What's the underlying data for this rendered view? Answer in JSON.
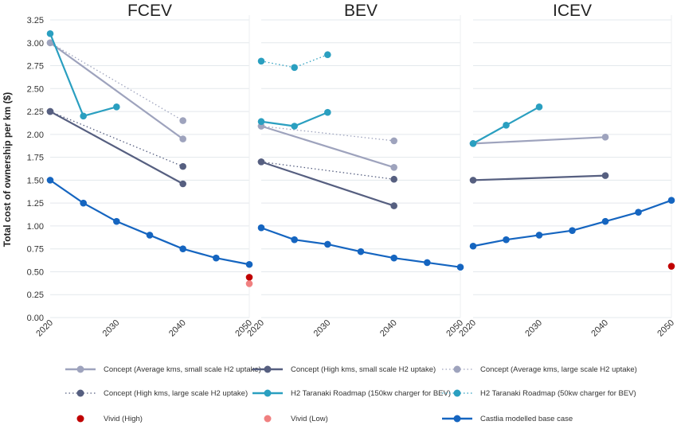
{
  "chart_data": {
    "type": "line",
    "ylabel": "Total cost of ownership per km ($)",
    "ylim": [
      0,
      3.25
    ],
    "yticks": [
      "0.00",
      "0.25",
      "0.50",
      "0.75",
      "1.00",
      "1.25",
      "1.50",
      "1.75",
      "2.00",
      "2.25",
      "2.50",
      "2.75",
      "3.00",
      "3.25"
    ],
    "xticks": [
      "2020",
      "2030",
      "2040",
      "2050"
    ],
    "grid": true,
    "legend_position": "bottom",
    "panels": [
      {
        "title": "FCEV",
        "series": [
          {
            "name": "Concept (Average kms, small scale H2 uptake)",
            "style": "solid",
            "color": "#9ea3bd",
            "x": [
              2020,
              2040
            ],
            "y": [
              3.0,
              1.95
            ]
          },
          {
            "name": "Concept (High kms, small scale H2 uptake)",
            "style": "solid",
            "color": "#565f80",
            "x": [
              2020,
              2040
            ],
            "y": [
              2.25,
              1.46
            ]
          },
          {
            "name": "Concept (Average kms, large scale H2 uptake)",
            "style": "dotted",
            "color": "#9ea3bd",
            "x": [
              2020,
              2040
            ],
            "y": [
              3.0,
              2.15
            ]
          },
          {
            "name": "Concept (High kms, large scale H2 uptake)",
            "style": "dotted",
            "color": "#565f80",
            "x": [
              2020,
              2040
            ],
            "y": [
              2.25,
              1.65
            ]
          },
          {
            "name": "H2 Taranaki Roadmap (150kw charger for BEV)",
            "style": "solid",
            "color": "#2a9fc0",
            "x": [
              2020,
              2025,
              2030
            ],
            "y": [
              3.1,
              2.2,
              2.3
            ]
          },
          {
            "name": "Vivid (High)",
            "style": "point",
            "color": "#c00000",
            "x": [
              2050
            ],
            "y": [
              0.44
            ]
          },
          {
            "name": "Vivid (Low)",
            "style": "point",
            "color": "#f08080",
            "x": [
              2050
            ],
            "y": [
              0.37
            ]
          },
          {
            "name": "Castlia modelled base case",
            "style": "solid",
            "color": "#1565c0",
            "x": [
              2020,
              2025,
              2030,
              2035,
              2040,
              2045,
              2050
            ],
            "y": [
              1.5,
              1.25,
              1.05,
              0.9,
              0.75,
              0.65,
              0.58
            ]
          }
        ]
      },
      {
        "title": "BEV",
        "series": [
          {
            "name": "Concept (Average kms, small scale H2 uptake)",
            "style": "solid",
            "color": "#9ea3bd",
            "x": [
              2020,
              2040
            ],
            "y": [
              2.09,
              1.64
            ]
          },
          {
            "name": "Concept (High kms, small scale H2 uptake)",
            "style": "solid",
            "color": "#565f80",
            "x": [
              2020,
              2040
            ],
            "y": [
              1.7,
              1.22
            ]
          },
          {
            "name": "Concept (Average kms, large scale H2 uptake)",
            "style": "dotted",
            "color": "#9ea3bd",
            "x": [
              2020,
              2040
            ],
            "y": [
              2.09,
              1.93
            ]
          },
          {
            "name": "Concept (High kms, large scale H2 uptake)",
            "style": "dotted",
            "color": "#565f80",
            "x": [
              2020,
              2040
            ],
            "y": [
              1.7,
              1.51
            ]
          },
          {
            "name": "H2 Taranaki Roadmap (150kw charger for BEV)",
            "style": "solid",
            "color": "#2a9fc0",
            "x": [
              2020,
              2025,
              2030
            ],
            "y": [
              2.14,
              2.09,
              2.24
            ]
          },
          {
            "name": "H2 Taranaki Roadmap (50kw charger for BEV)",
            "style": "dotted",
            "color": "#2a9fc0",
            "x": [
              2020,
              2025,
              2030
            ],
            "y": [
              2.8,
              2.73,
              2.87
            ]
          },
          {
            "name": "Castlia modelled base case",
            "style": "solid",
            "color": "#1565c0",
            "x": [
              2020,
              2025,
              2030,
              2035,
              2040,
              2045,
              2050
            ],
            "y": [
              0.98,
              0.85,
              0.8,
              0.72,
              0.65,
              0.6,
              0.55
            ]
          }
        ]
      },
      {
        "title": "ICEV",
        "series": [
          {
            "name": "Concept (Average kms, small scale H2 uptake)",
            "style": "solid",
            "color": "#9ea3bd",
            "x": [
              2020,
              2040
            ],
            "y": [
              1.9,
              1.97
            ]
          },
          {
            "name": "Concept (High kms, small scale H2 uptake)",
            "style": "solid",
            "color": "#565f80",
            "x": [
              2020,
              2040
            ],
            "y": [
              1.5,
              1.55
            ]
          },
          {
            "name": "H2 Taranaki Roadmap (150kw charger for BEV)",
            "style": "solid",
            "color": "#2a9fc0",
            "x": [
              2020,
              2025,
              2030
            ],
            "y": [
              1.9,
              2.1,
              2.3
            ]
          },
          {
            "name": "Vivid (High)",
            "style": "point",
            "color": "#c00000",
            "x": [
              2050
            ],
            "y": [
              0.56
            ]
          },
          {
            "name": "Castlia modelled base case",
            "style": "solid",
            "color": "#1565c0",
            "x": [
              2020,
              2025,
              2030,
              2035,
              2040,
              2045,
              2050
            ],
            "y": [
              0.78,
              0.85,
              0.9,
              0.95,
              1.05,
              1.15,
              1.28
            ]
          }
        ]
      }
    ],
    "legend": [
      {
        "label": "Concept (Average kms, small scale H2 uptake)",
        "style": "solid",
        "color": "#9ea3bd"
      },
      {
        "label": "Concept (High kms, small scale H2 uptake)",
        "style": "solid",
        "color": "#565f80"
      },
      {
        "label": "Concept (Average kms, large scale H2 uptake)",
        "style": "dotted",
        "color": "#9ea3bd"
      },
      {
        "label": "Concept (High kms, large scale H2 uptake)",
        "style": "dotted",
        "color": "#565f80"
      },
      {
        "label": "H2 Taranaki Roadmap (150kw charger for BEV)",
        "style": "solid",
        "color": "#2a9fc0"
      },
      {
        "label": "H2 Taranaki Roadmap (50kw charger for BEV)",
        "style": "dotted",
        "color": "#2a9fc0"
      },
      {
        "label": "Vivid (High)",
        "style": "point",
        "color": "#c00000"
      },
      {
        "label": "Vivid (Low)",
        "style": "point",
        "color": "#f08080"
      },
      {
        "label": "Castlia modelled base case",
        "style": "solid",
        "color": "#1565c0"
      }
    ]
  }
}
